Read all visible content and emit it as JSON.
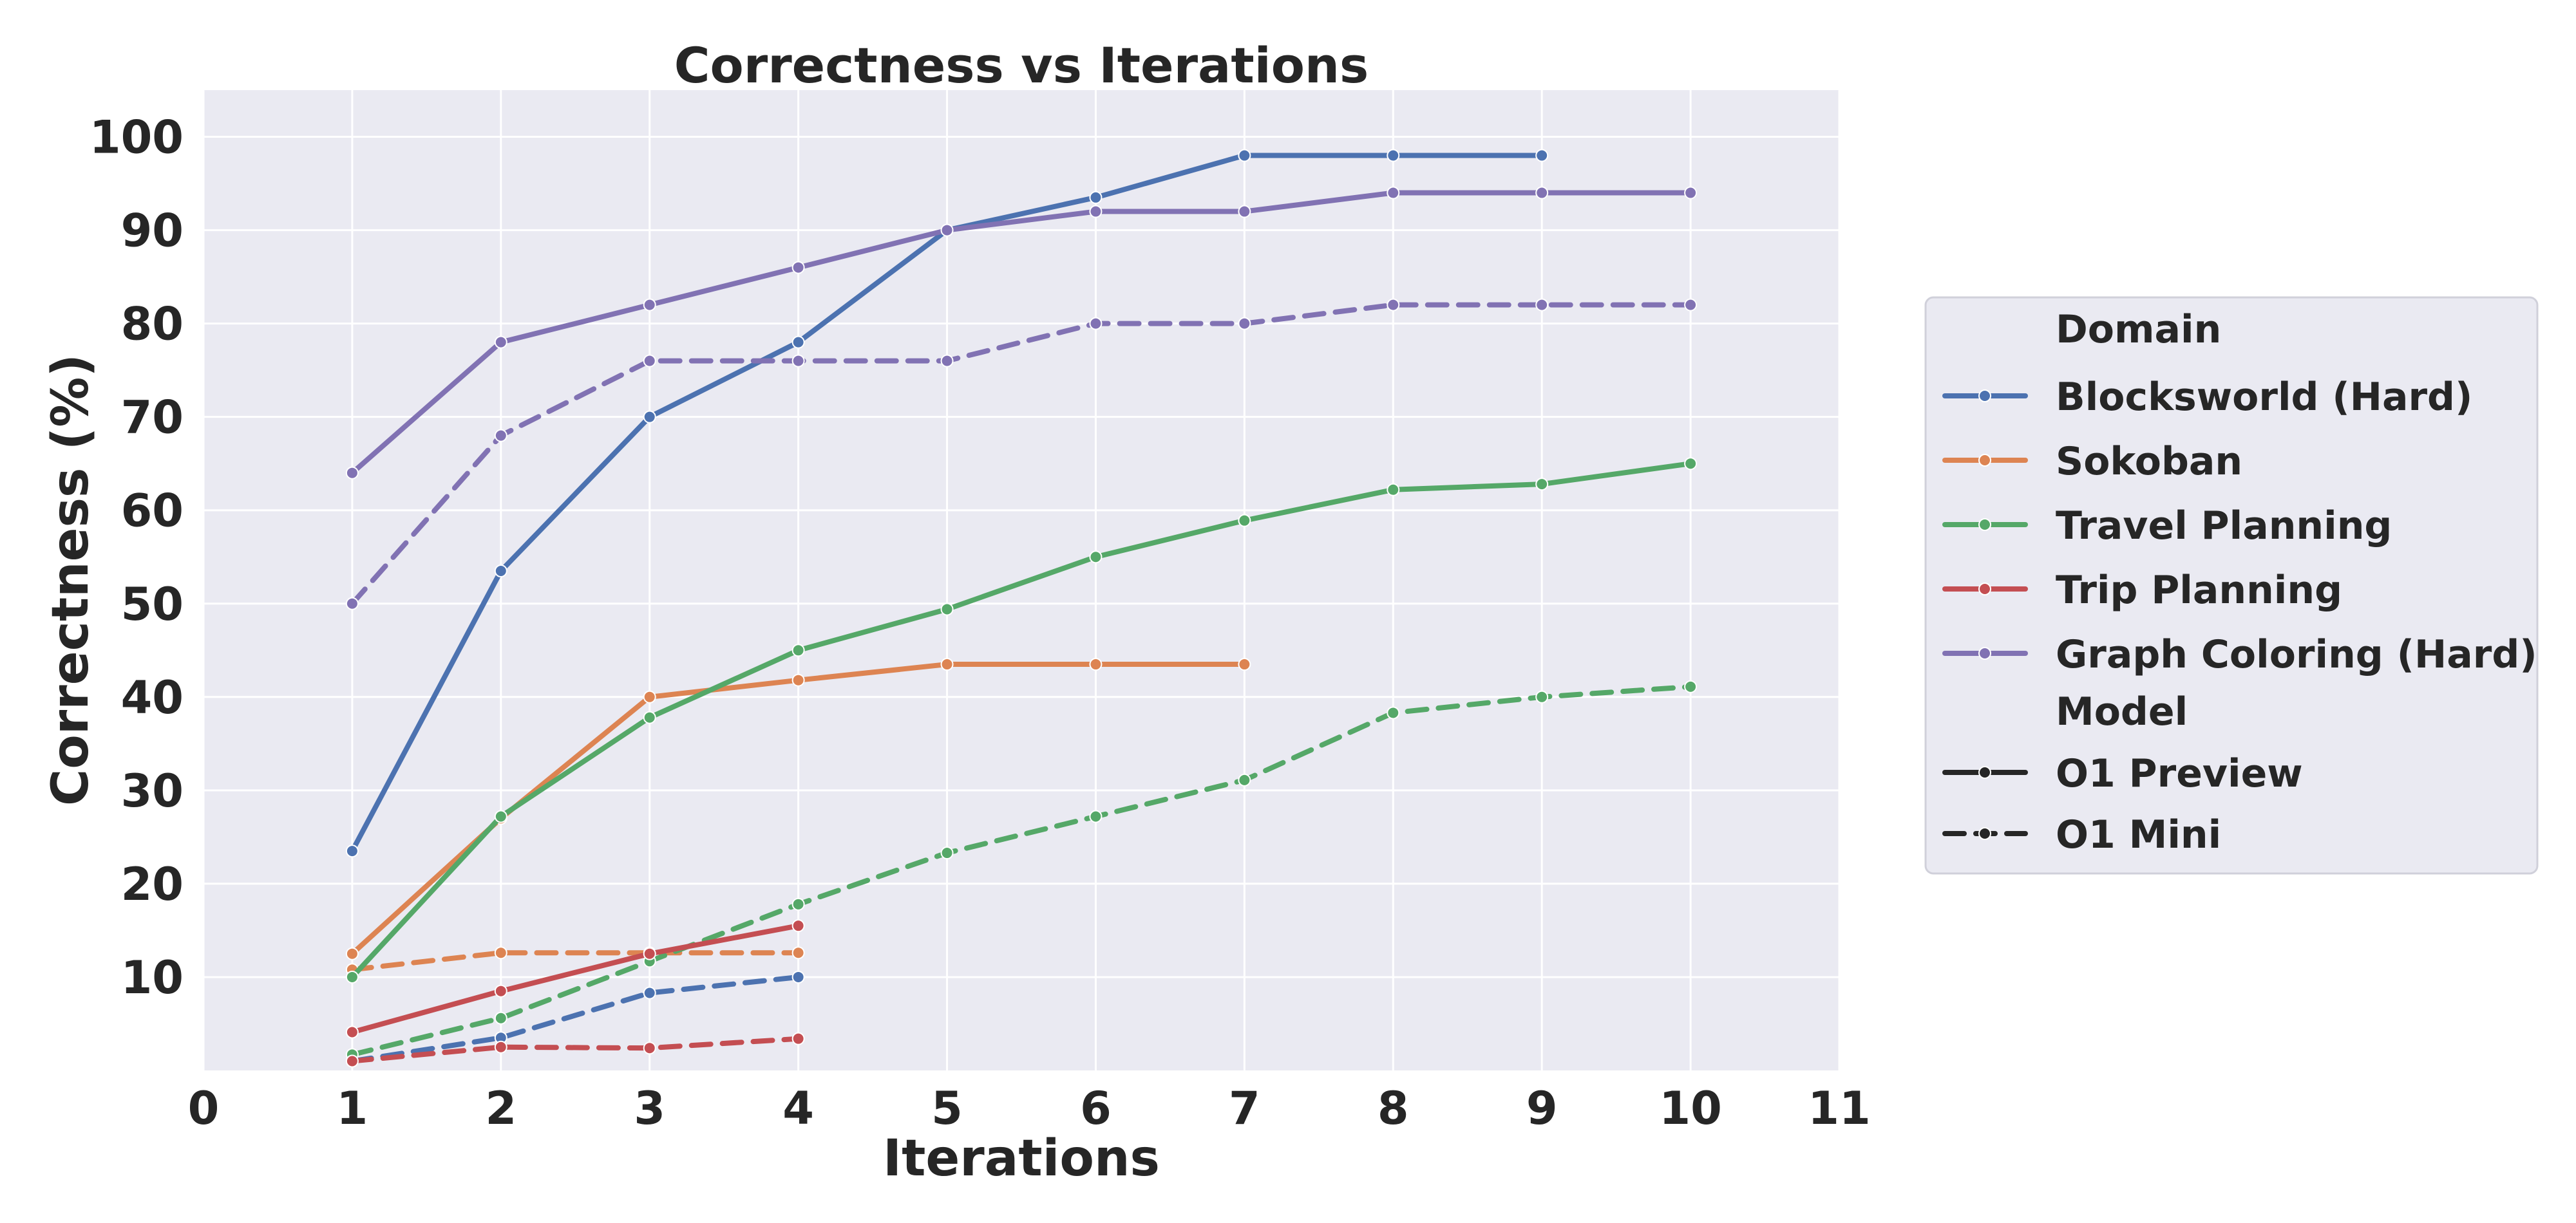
{
  "chart_data": {
    "type": "line",
    "title": "Correctness vs Iterations",
    "xlabel": "Iterations",
    "ylabel": "Correctness (%)",
    "xlim": [
      0,
      11
    ],
    "ylim": [
      0,
      105
    ],
    "xticks": [
      0,
      1,
      2,
      3,
      4,
      5,
      6,
      7,
      8,
      9,
      10,
      11
    ],
    "yticks": [
      10,
      20,
      30,
      40,
      50,
      60,
      70,
      80,
      90,
      100
    ],
    "grid": true,
    "legend_position": "right",
    "legend": {
      "domain_title": "Domain",
      "model_title": "Model",
      "domains": [
        {
          "name": "Blocksworld (Hard)",
          "color": "#4c72b0"
        },
        {
          "name": "Sokoban",
          "color": "#dd8452"
        },
        {
          "name": "Travel Planning",
          "color": "#55a868"
        },
        {
          "name": "Trip Planning",
          "color": "#c44e52"
        },
        {
          "name": "Graph Coloring (Hard)",
          "color": "#8172b3"
        }
      ],
      "models": [
        {
          "name": "O1 Preview",
          "dash": "solid"
        },
        {
          "name": "O1 Mini",
          "dash": "dashed"
        }
      ]
    },
    "series": [
      {
        "domain": "Blocksworld (Hard)",
        "model": "O1 Preview",
        "color": "#4c72b0",
        "dash": "solid",
        "x": [
          1,
          2,
          3,
          4,
          5,
          6,
          7,
          8,
          9
        ],
        "y": [
          23.5,
          53.5,
          70,
          78,
          90,
          93.5,
          98,
          98,
          98
        ]
      },
      {
        "domain": "Blocksworld (Hard)",
        "model": "O1 Mini",
        "color": "#4c72b0",
        "dash": "dashed",
        "x": [
          1,
          2,
          3,
          4
        ],
        "y": [
          1,
          3.5,
          8.3,
          10
        ]
      },
      {
        "domain": "Sokoban",
        "model": "O1 Preview",
        "color": "#dd8452",
        "dash": "solid",
        "x": [
          1,
          2,
          3,
          4,
          5,
          6,
          7
        ],
        "y": [
          12.5,
          27,
          40,
          41.8,
          43.5,
          43.5,
          43.5
        ]
      },
      {
        "domain": "Sokoban",
        "model": "O1 Mini",
        "color": "#dd8452",
        "dash": "dashed",
        "x": [
          1,
          2,
          3,
          4
        ],
        "y": [
          10.8,
          12.6,
          12.6,
          12.6
        ]
      },
      {
        "domain": "Travel Planning",
        "model": "O1 Preview",
        "color": "#55a868",
        "dash": "solid",
        "x": [
          1,
          2,
          3,
          4,
          5,
          6,
          7,
          8,
          9,
          10
        ],
        "y": [
          10,
          27.2,
          37.8,
          45,
          49.4,
          55,
          58.9,
          62.2,
          62.8,
          65
        ]
      },
      {
        "domain": "Travel Planning",
        "model": "O1 Mini",
        "color": "#55a868",
        "dash": "dashed",
        "x": [
          1,
          2,
          3,
          4,
          5,
          6,
          7,
          8,
          9,
          10
        ],
        "y": [
          1.7,
          5.6,
          11.7,
          17.8,
          23.3,
          27.2,
          31.1,
          38.3,
          40,
          41.1
        ]
      },
      {
        "domain": "Trip Planning",
        "model": "O1 Preview",
        "color": "#c44e52",
        "dash": "solid",
        "x": [
          1,
          2,
          3,
          4
        ],
        "y": [
          4.1,
          8.5,
          12.5,
          15.5
        ]
      },
      {
        "domain": "Trip Planning",
        "model": "O1 Mini",
        "color": "#c44e52",
        "dash": "dashed",
        "x": [
          1,
          2,
          3,
          4
        ],
        "y": [
          1,
          2.5,
          2.4,
          3.4
        ]
      },
      {
        "domain": "Graph Coloring (Hard)",
        "model": "O1 Preview",
        "color": "#8172b3",
        "dash": "solid",
        "x": [
          1,
          2,
          3,
          4,
          5,
          6,
          7,
          8,
          9,
          10
        ],
        "y": [
          64,
          78,
          82,
          86,
          90,
          92,
          92,
          94,
          94,
          94
        ]
      },
      {
        "domain": "Graph Coloring (Hard)",
        "model": "O1 Mini",
        "color": "#8172b3",
        "dash": "dashed",
        "x": [
          1,
          2,
          3,
          4,
          5,
          6,
          7,
          8,
          9,
          10
        ],
        "y": [
          50,
          68,
          76,
          76,
          76,
          80,
          80,
          82,
          82,
          82
        ]
      }
    ]
  }
}
